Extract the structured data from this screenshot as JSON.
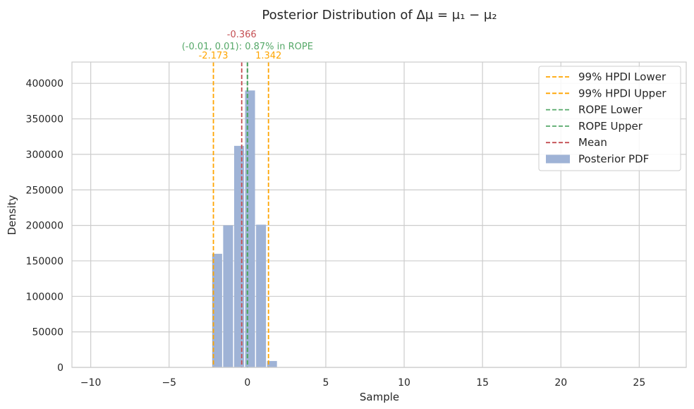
{
  "chart_data": {
    "type": "bar",
    "title": "Posterior Distribution of  Δμ = μ₁ − μ₂",
    "xlabel": "Sample",
    "ylabel": "Density",
    "xlim": [
      -11.2,
      28
    ],
    "ylim": [
      0,
      430000
    ],
    "xticks": [
      -10,
      -5,
      0,
      5,
      10,
      15,
      20,
      25
    ],
    "xtick_labels": [
      "−10",
      "−5",
      "0",
      "5",
      "10",
      "15",
      "20",
      "25"
    ],
    "yticks": [
      0,
      50000,
      100000,
      150000,
      200000,
      250000,
      300000,
      350000,
      400000
    ],
    "ytick_labels": [
      "0",
      "50000",
      "100000",
      "150000",
      "200000",
      "250000",
      "300000",
      "350000",
      "400000"
    ],
    "grid": true,
    "bin_edges": [
      -2.25,
      -1.55,
      -0.85,
      -0.15,
      0.55,
      1.25,
      1.95
    ],
    "values": [
      160000,
      200000,
      312000,
      390000,
      201000,
      9000
    ],
    "series": [
      {
        "name": "Posterior PDF",
        "color": "#9fb3d6"
      }
    ],
    "vlines": [
      {
        "name": "99% HPDI Lower",
        "x": -2.173,
        "color": "#ffa500",
        "label": "-2.173"
      },
      {
        "name": "99% HPDI Upper",
        "x": 1.342,
        "color": "#ffa500",
        "label": "1.342"
      },
      {
        "name": "ROPE Lower",
        "x": -0.01,
        "color": "#55a868"
      },
      {
        "name": "ROPE Upper",
        "x": 0.01,
        "color": "#55a868"
      },
      {
        "name": "Mean",
        "x": -0.366,
        "color": "#c44e52",
        "label": "-0.366"
      }
    ],
    "rope_annotation": {
      "text": "(-0.01, 0.01): 0.87% in ROPE",
      "color": "#55a868"
    },
    "legend_position": "top-right",
    "legend": [
      {
        "label": "99% HPDI Lower",
        "style": "dashed",
        "color": "#ffa500"
      },
      {
        "label": "99% HPDI Upper",
        "style": "dashed",
        "color": "#ffa500"
      },
      {
        "label": "ROPE Lower",
        "style": "dashed",
        "color": "#55a868"
      },
      {
        "label": "ROPE Upper",
        "style": "dashed",
        "color": "#55a868"
      },
      {
        "label": "Mean",
        "style": "dashed",
        "color": "#c44e52"
      },
      {
        "label": "Posterior PDF",
        "style": "patch",
        "color": "#9fb3d6"
      }
    ]
  }
}
